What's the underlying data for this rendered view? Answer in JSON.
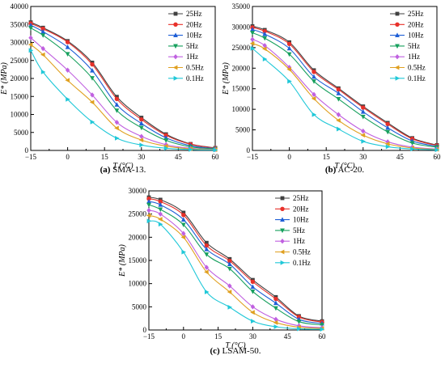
{
  "chart_data": [
    {
      "type": "line",
      "caption_bold": "(a)",
      "caption_rest": " SMA-13.",
      "xlabel": "T (°C)",
      "ylabel": "E* (MPa)",
      "xlim": [
        -15,
        60
      ],
      "ylim": [
        0,
        40000
      ],
      "xticks": [
        -15,
        0,
        15,
        30,
        45,
        60
      ],
      "yticks": [
        0,
        5000,
        10000,
        15000,
        20000,
        25000,
        30000,
        35000,
        40000
      ],
      "x": [
        -15,
        -10,
        0,
        10,
        20,
        30,
        40,
        50,
        60
      ],
      "legend_position": "top-right",
      "series": [
        {
          "name": "25Hz",
          "color": "#404040",
          "marker": "square",
          "values": [
            35600,
            34100,
            30400,
            24400,
            14900,
            9100,
            4500,
            1800,
            700
          ]
        },
        {
          "name": "20Hz",
          "color": "#e8302a",
          "marker": "circle",
          "values": [
            35300,
            33800,
            30100,
            23900,
            14300,
            8600,
            4200,
            1700,
            650
          ]
        },
        {
          "name": "10Hz",
          "color": "#1f5fd6",
          "marker": "triangle-up",
          "values": [
            34800,
            33000,
            28700,
            22200,
            12700,
            7500,
            3500,
            1300,
            520
          ]
        },
        {
          "name": "5Hz",
          "color": "#17a05e",
          "marker": "triangle-down",
          "values": [
            34000,
            32000,
            26800,
            20100,
            11100,
            6300,
            2800,
            1000,
            420
          ]
        },
        {
          "name": "1Hz",
          "color": "#c060e0",
          "marker": "diamond",
          "values": [
            31300,
            28300,
            22300,
            15400,
            7800,
            3900,
            1600,
            600,
            250
          ]
        },
        {
          "name": "0.5Hz",
          "color": "#e0a020",
          "marker": "triangle-left",
          "values": [
            29400,
            26600,
            19500,
            13400,
            6200,
            2900,
            1200,
            450,
            200
          ]
        },
        {
          "name": "0.1Hz",
          "color": "#20c8d8",
          "marker": "triangle-right",
          "values": [
            27800,
            21800,
            14200,
            7900,
            3400,
            1500,
            600,
            250,
            120
          ]
        }
      ]
    },
    {
      "type": "line",
      "caption_bold": "(b)",
      "caption_rest": " AC-20.",
      "xlabel": "T (°C)",
      "ylabel": "E* (MPa)",
      "xlim": [
        -15,
        60
      ],
      "ylim": [
        0,
        35000
      ],
      "xticks": [
        -15,
        0,
        15,
        30,
        45,
        60
      ],
      "yticks": [
        0,
        5000,
        10000,
        15000,
        20000,
        25000,
        30000,
        35000
      ],
      "x": [
        -15,
        -10,
        0,
        10,
        20,
        30,
        40,
        50,
        60
      ],
      "legend_position": "top-right",
      "series": [
        {
          "name": "25Hz",
          "color": "#404040",
          "marker": "square",
          "values": [
            30200,
            29300,
            26300,
            19500,
            15100,
            10700,
            6700,
            3000,
            1300
          ]
        },
        {
          "name": "20Hz",
          "color": "#e8302a",
          "marker": "circle",
          "values": [
            29900,
            29000,
            25900,
            19100,
            14800,
            10400,
            6400,
            2800,
            1200
          ]
        },
        {
          "name": "10Hz",
          "color": "#1f5fd6",
          "marker": "triangle-up",
          "values": [
            29400,
            28300,
            24800,
            17900,
            13900,
            9400,
            5500,
            2300,
            1000
          ]
        },
        {
          "name": "5Hz",
          "color": "#17a05e",
          "marker": "triangle-down",
          "values": [
            28600,
            27300,
            23400,
            16800,
            12500,
            8200,
            4500,
            1800,
            800
          ]
        },
        {
          "name": "1Hz",
          "color": "#c060e0",
          "marker": "diamond",
          "values": [
            27000,
            25500,
            20200,
            13600,
            8700,
            4700,
            2100,
            800,
            350
          ]
        },
        {
          "name": "0.5Hz",
          "color": "#e0a020",
          "marker": "triangle-left",
          "values": [
            26000,
            24700,
            19700,
            12600,
            7300,
            3700,
            1600,
            600,
            250
          ]
        },
        {
          "name": "0.1Hz",
          "color": "#20c8d8",
          "marker": "triangle-right",
          "values": [
            24800,
            22200,
            16800,
            8700,
            5200,
            2200,
            900,
            350,
            150
          ]
        }
      ]
    },
    {
      "type": "line",
      "caption_bold": "(c)",
      "caption_rest": " LSAM-50.",
      "xlabel": "T (°C)",
      "ylabel": "E* (MPa)",
      "xlim": [
        -15,
        60
      ],
      "ylim": [
        0,
        30000
      ],
      "xticks": [
        -15,
        0,
        15,
        30,
        45,
        60
      ],
      "yticks": [
        0,
        5000,
        10000,
        15000,
        20000,
        25000,
        30000
      ],
      "x": [
        -15,
        -10,
        0,
        10,
        20,
        30,
        40,
        50,
        60
      ],
      "legend_position": "top-right",
      "series": [
        {
          "name": "25Hz",
          "color": "#404040",
          "marker": "square",
          "values": [
            28600,
            28100,
            25300,
            18800,
            15300,
            10800,
            7100,
            3000,
            1900
          ]
        },
        {
          "name": "20Hz",
          "color": "#e8302a",
          "marker": "circle",
          "values": [
            28300,
            27700,
            24800,
            18200,
            14900,
            10400,
            6700,
            2800,
            1700
          ]
        },
        {
          "name": "10Hz",
          "color": "#1f5fd6",
          "marker": "triangle-up",
          "values": [
            27700,
            27000,
            23800,
            17400,
            14200,
            9300,
            5800,
            2300,
            1400
          ]
        },
        {
          "name": "5Hz",
          "color": "#17a05e",
          "marker": "triangle-down",
          "values": [
            27000,
            26000,
            22700,
            16300,
            13200,
            8300,
            4700,
            1800,
            1100
          ]
        },
        {
          "name": "1Hz",
          "color": "#c060e0",
          "marker": "diamond",
          "values": [
            25800,
            25000,
            20800,
            13500,
            9500,
            5000,
            2300,
            900,
            500
          ]
        },
        {
          "name": "0.5Hz",
          "color": "#e0a020",
          "marker": "triangle-left",
          "values": [
            24700,
            23900,
            20000,
            12500,
            8200,
            3800,
            1600,
            600,
            350
          ]
        },
        {
          "name": "0.1Hz",
          "color": "#20c8d8",
          "marker": "triangle-right",
          "values": [
            23500,
            22800,
            16800,
            8200,
            4900,
            1900,
            700,
            250,
            150
          ]
        }
      ]
    }
  ]
}
